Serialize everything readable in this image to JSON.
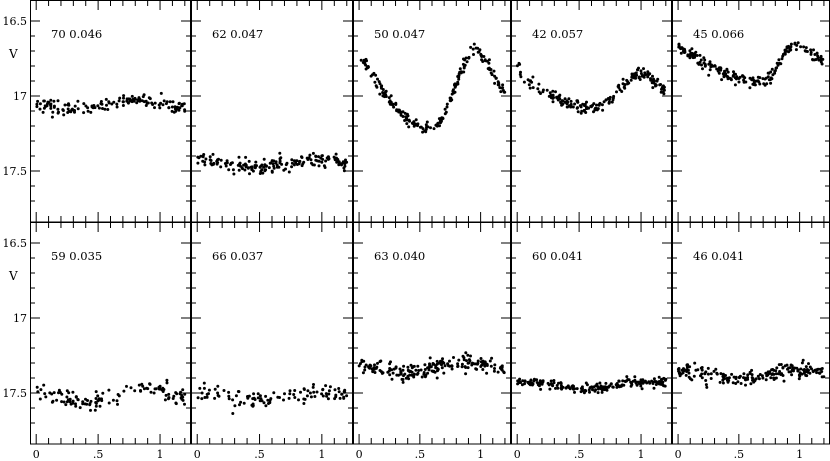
{
  "chart_data": {
    "type": "scatter",
    "ylabel": "V",
    "x_ticks": [
      {
        "value": 0,
        "label": "0"
      },
      {
        "value": 0.5,
        "label": ".5"
      },
      {
        "value": 1,
        "label": "1"
      }
    ],
    "y_ticks": [
      {
        "value": 16.5,
        "label": "16.5"
      },
      {
        "value": 17,
        "label": "17"
      },
      {
        "value": 17.5,
        "label": "17.5"
      }
    ],
    "xlim": [
      -0.05,
      1.25
    ],
    "ylim_inverted": [
      16.4,
      17.8
    ],
    "panels": [
      {
        "id": "70",
        "amp": "0.046",
        "label": "70 0.046",
        "row": 0,
        "col": 0,
        "shape": "flat",
        "mean": 17.06,
        "half_amp": 0.03,
        "phase0": 0.3,
        "scatter": 0.02,
        "n": 150
      },
      {
        "id": "62",
        "amp": "0.047",
        "label": "62 0.047",
        "row": 0,
        "col": 1,
        "shape": "flat",
        "mean": 17.45,
        "half_amp": 0.03,
        "phase0": 0.45,
        "scatter": 0.025,
        "n": 180
      },
      {
        "id": "50",
        "amp": "0.047",
        "label": "50 0.047",
        "row": 0,
        "col": 2,
        "shape": "rrab",
        "max_mag": 16.68,
        "min_mag": 17.22,
        "max_phase": 0.97,
        "min_phase": 0.6,
        "scatter": 0.02,
        "n": 200
      },
      {
        "id": "42",
        "amp": "0.057",
        "label": "42 0.057",
        "row": 0,
        "col": 3,
        "shape": "rrab",
        "max_mag": 16.85,
        "min_mag": 17.08,
        "max_phase": 1.02,
        "min_phase": 0.6,
        "scatter": 0.02,
        "n": 200
      },
      {
        "id": "45",
        "amp": "0.066",
        "label": "45 0.066",
        "row": 0,
        "col": 4,
        "shape": "rrab",
        "max_mag": 16.65,
        "min_mag": 16.91,
        "max_phase": 0.97,
        "min_phase": 0.7,
        "scatter": 0.02,
        "n": 200
      },
      {
        "id": "59",
        "amp": "0.035",
        "label": "59 0.035",
        "row": 1,
        "col": 0,
        "shape": "flat",
        "mean": 17.52,
        "half_amp": 0.04,
        "phase0": 0.4,
        "scatter": 0.03,
        "n": 120
      },
      {
        "id": "66",
        "amp": "0.037",
        "label": "66 0.037",
        "row": 1,
        "col": 1,
        "shape": "flat",
        "mean": 17.52,
        "half_amp": 0.03,
        "phase0": 0.5,
        "scatter": 0.03,
        "n": 110
      },
      {
        "id": "63",
        "amp": "0.040",
        "label": "63 0.040",
        "row": 1,
        "col": 2,
        "shape": "flat",
        "mean": 17.33,
        "half_amp": 0.03,
        "phase0": 0.4,
        "scatter": 0.025,
        "n": 200
      },
      {
        "id": "60",
        "amp": "0.041",
        "label": "60 0.041",
        "row": 1,
        "col": 3,
        "shape": "flat",
        "mean": 17.45,
        "half_amp": 0.025,
        "phase0": 0.55,
        "scatter": 0.015,
        "n": 200
      },
      {
        "id": "46",
        "amp": "0.041",
        "label": "46 0.041",
        "row": 1,
        "col": 4,
        "shape": "flat",
        "mean": 17.38,
        "half_amp": 0.03,
        "phase0": 0.5,
        "scatter": 0.025,
        "n": 200
      }
    ]
  }
}
